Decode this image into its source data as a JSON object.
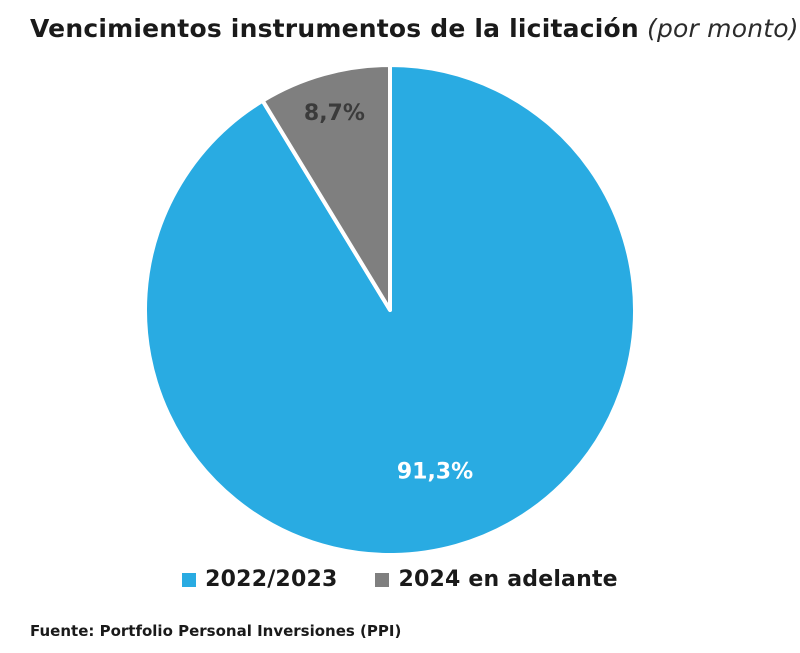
{
  "title": {
    "main": "Vencimientos instrumentos de la licitación",
    "suffix": " (por monto)"
  },
  "chart_data": {
    "type": "pie",
    "title": "Vencimientos instrumentos de la licitación (por monto)",
    "labels": [
      "2022/2023",
      "2024 en adelante"
    ],
    "values": [
      91.3,
      8.7
    ],
    "value_labels": [
      "91,3%",
      "8,7%"
    ],
    "colors": [
      "#29ABE2",
      "#7F7F7F"
    ],
    "value_label_colors": [
      "#FFFFFF",
      "#3B3B3B"
    ],
    "start_angle_deg": 0,
    "direction": "clockwise",
    "label_radius_factors": [
      0.68,
      0.84
    ],
    "legend_position": "bottom",
    "slice_border_color": "#FFFFFF"
  },
  "footer": {
    "source": "Fuente: Portfolio Personal Inversiones (PPI)"
  }
}
